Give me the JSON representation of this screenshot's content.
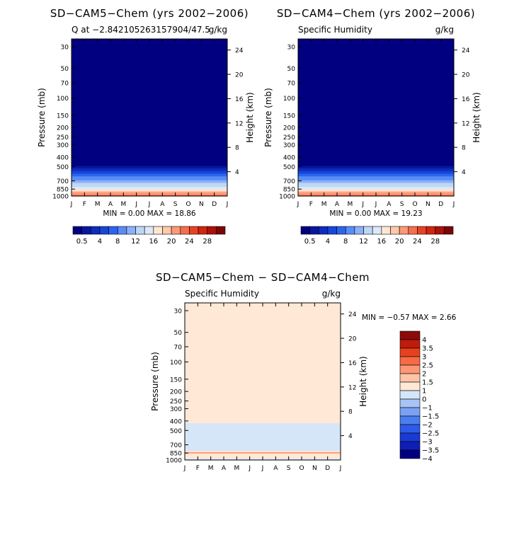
{
  "chart_data": [
    {
      "type": "heatmap",
      "title": "SD−CAM5−Chem (yrs 2002−2006)",
      "subtitle_left": "Q at −2.842105263157904/47.5",
      "subtitle_right": "g/kg",
      "ylabel": "Pressure (mb)",
      "ylabel_right": "Height (km)",
      "x_ticks": [
        "J",
        "F",
        "M",
        "A",
        "M",
        "J",
        "J",
        "A",
        "S",
        "O",
        "N",
        "D",
        "J"
      ],
      "y_ticks": [
        "30",
        "50",
        "70",
        "100",
        "150",
        "200",
        "250",
        "300",
        "400",
        "500",
        "700",
        "850",
        "1000"
      ],
      "y_right_ticks": [
        "24",
        "20",
        "16",
        "12",
        "8",
        "4"
      ],
      "y_scale": "log",
      "ylim": [
        1000,
        25
      ],
      "stats": "MIN =    0.00  MAX =   18.86",
      "levels": [
        0.5,
        0.75,
        1,
        1.5,
        2,
        3,
        4,
        6,
        8,
        10,
        12,
        14,
        16,
        20,
        24,
        28
      ],
      "colorbar_labels": [
        "0.5",
        "4",
        "8",
        "12",
        "16",
        "20",
        "24",
        "28"
      ],
      "profile": [
        {
          "p": 300,
          "v": 0.005
        },
        {
          "p": 400,
          "v": 0.05
        },
        {
          "p": 500,
          "v": 0.5
        },
        {
          "p": 600,
          "v": 1.5
        },
        {
          "p": 700,
          "v": 3
        },
        {
          "p": 800,
          "v": 6
        },
        {
          "p": 850,
          "v": 8
        },
        {
          "p": 925,
          "v": 12
        },
        {
          "p": 1000,
          "v": 16
        }
      ]
    },
    {
      "type": "heatmap",
      "title": "SD−CAM4−Chem (yrs 2002−2006)",
      "subtitle_left": "Specific Humidity",
      "subtitle_right": "g/kg",
      "ylabel": "Pressure (mb)",
      "ylabel_right": "Height (km)",
      "x_ticks": [
        "J",
        "F",
        "M",
        "A",
        "M",
        "J",
        "J",
        "A",
        "S",
        "O",
        "N",
        "D",
        "J"
      ],
      "y_ticks": [
        "30",
        "50",
        "70",
        "100",
        "150",
        "200",
        "250",
        "300",
        "400",
        "500",
        "700",
        "850",
        "1000"
      ],
      "y_right_ticks": [
        "24",
        "20",
        "16",
        "12",
        "8",
        "4"
      ],
      "y_scale": "log",
      "ylim": [
        1000,
        25
      ],
      "stats": "MIN =    0.00  MAX =   19.23",
      "levels": [
        0.5,
        0.75,
        1,
        1.5,
        2,
        3,
        4,
        6,
        8,
        10,
        12,
        14,
        16,
        20,
        24,
        28
      ],
      "colorbar_labels": [
        "0.5",
        "4",
        "8",
        "12",
        "16",
        "20",
        "24",
        "28"
      ],
      "profile": [
        {
          "p": 300,
          "v": 0.005
        },
        {
          "p": 400,
          "v": 0.05
        },
        {
          "p": 500,
          "v": 0.5
        },
        {
          "p": 600,
          "v": 1.5
        },
        {
          "p": 700,
          "v": 3
        },
        {
          "p": 800,
          "v": 6
        },
        {
          "p": 850,
          "v": 8
        },
        {
          "p": 925,
          "v": 12
        },
        {
          "p": 1000,
          "v": 16
        }
      ]
    },
    {
      "type": "heatmap",
      "title": "SD−CAM5−Chem − SD−CAM4−Chem",
      "subtitle_left": "Specific Humidity",
      "subtitle_right": "g/kg",
      "ylabel": "Pressure (mb)",
      "ylabel_right": "Height (km)",
      "x_ticks": [
        "J",
        "F",
        "M",
        "A",
        "M",
        "J",
        "J",
        "A",
        "S",
        "O",
        "N",
        "D",
        "J"
      ],
      "y_ticks": [
        "30",
        "50",
        "70",
        "100",
        "150",
        "200",
        "250",
        "300",
        "400",
        "500",
        "700",
        "850",
        "1000"
      ],
      "y_right_ticks": [
        "24",
        "20",
        "16",
        "12",
        "8",
        "4"
      ],
      "y_scale": "log",
      "ylim": [
        1000,
        25
      ],
      "stats": "MIN =   −0.57  MAX =    2.66",
      "levels": [
        -4,
        -3.5,
        -3,
        -2.5,
        -2,
        -1.5,
        -1,
        0,
        1,
        1.5,
        2,
        2.5,
        3,
        3.5,
        4
      ],
      "colorbar_labels": [
        "4",
        "3.5",
        "3",
        "2.5",
        "2",
        "1.5",
        "1",
        "0",
        "−1",
        "−1.5",
        "−2",
        "−2.5",
        "−3",
        "−3.5",
        "−4"
      ],
      "profile": [
        {
          "p": 25,
          "v": 0.1
        },
        {
          "p": 400,
          "v": 0.1
        },
        {
          "p": 450,
          "v": -0.2
        },
        {
          "p": 800,
          "v": -0.2
        },
        {
          "p": 820,
          "v": 0.5
        },
        {
          "p": 850,
          "v": 1.8
        },
        {
          "p": 880,
          "v": 0.5
        },
        {
          "p": 1000,
          "v": -0.3
        }
      ]
    }
  ],
  "colors": {
    "abs_palette": [
      "#000080",
      "#0a16a0",
      "#0d2dbe",
      "#1746d8",
      "#2d64ee",
      "#5a8cf5",
      "#8cb0fa",
      "#bed7f5",
      "#dce8f8",
      "#ffe6d2",
      "#ffc8aa",
      "#fa9a78",
      "#f56e4e",
      "#e84226",
      "#d2260e",
      "#aa120a",
      "#7a0606"
    ],
    "diff_palette": [
      "#000080",
      "#0f1fb4",
      "#1a3ad6",
      "#2f5ae8",
      "#4a7ef0",
      "#7aa2f4",
      "#a8c4f5",
      "#d4e6f8",
      "#ffe8d6",
      "#ffc3a6",
      "#fc9774",
      "#f76a46",
      "#e6421f",
      "#c01c0c",
      "#8c0a0a"
    ]
  }
}
